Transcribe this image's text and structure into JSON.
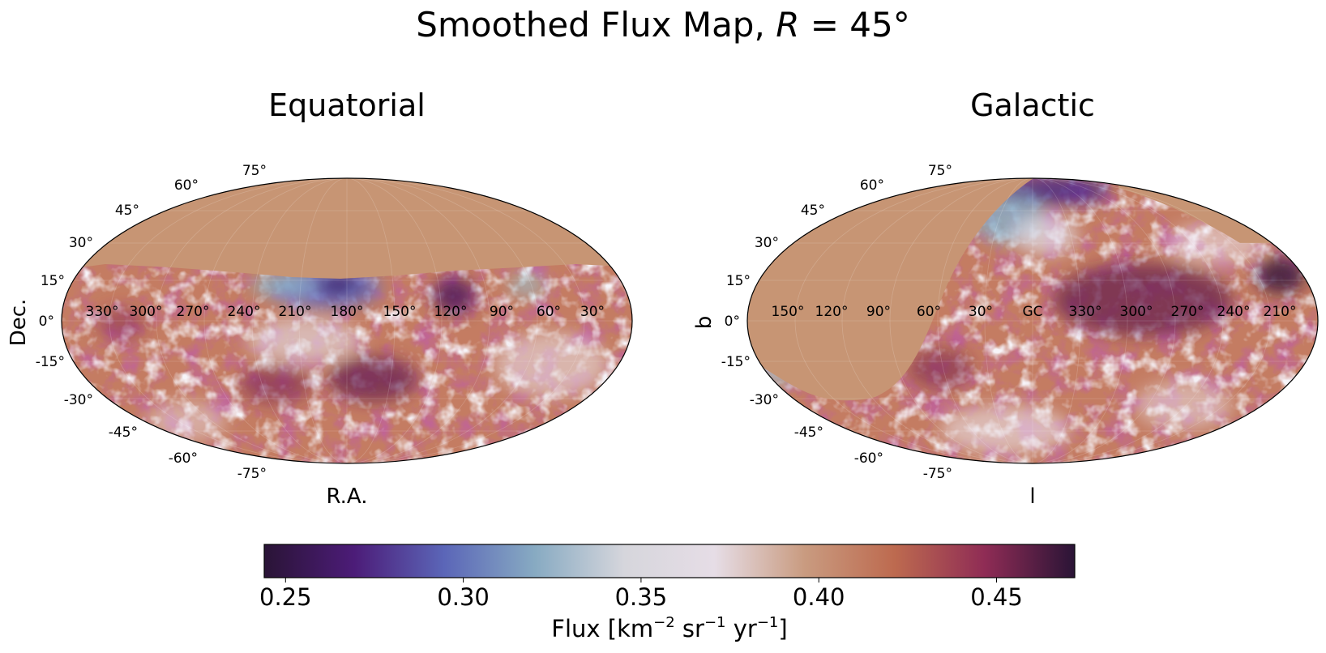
{
  "figure": {
    "title_main": "Smoothed Flux Map, ",
    "title_math_var": "R",
    "title_math_rest": " = 45°"
  },
  "colors": {
    "mask": "#c79574",
    "colormap": "twilight_shifted",
    "colormap_stops": [
      "#2a1436",
      "#4c1c78",
      "#5b66b8",
      "#87aac2",
      "#d6d6dc",
      "#e6dde6",
      "#c99b80",
      "#bd6a4f",
      "#8f2c55",
      "#2a1436"
    ]
  },
  "chart_data": [
    {
      "type": "heatmap",
      "projection": "mollweide",
      "title": "Equatorial",
      "xlabel": "R.A.",
      "ylabel": "Dec.",
      "lon_tick_labels": [
        "330°",
        "300°",
        "270°",
        "240°",
        "210°",
        "180°",
        "150°",
        "120°",
        "90°",
        "60°",
        "30°"
      ],
      "lat_tick_labels": [
        "75°",
        "60°",
        "45°",
        "30°",
        "15°",
        "0°",
        "-15°",
        "-30°",
        "-45°",
        "-60°",
        "-75°"
      ],
      "masked_region": "declination above about 20°",
      "grid": true
    },
    {
      "type": "heatmap",
      "projection": "mollweide",
      "title": "Galactic",
      "xlabel": "l",
      "ylabel": "b",
      "lon_tick_labels": [
        "150°",
        "120°",
        "90°",
        "60°",
        "30°",
        "GC",
        "330°",
        "300°",
        "270°",
        "240°",
        "210°"
      ],
      "lat_tick_labels": [
        "75°",
        "60°",
        "45°",
        "30°",
        "15°",
        "0°",
        "-15°",
        "-30°",
        "-45°",
        "-60°",
        "-75°"
      ],
      "masked_region": "equatorial declination above about 20°",
      "grid": true
    }
  ],
  "colorbar": {
    "ticks": [
      "0.25",
      "0.30",
      "0.35",
      "0.40",
      "0.45"
    ],
    "tick_values": [
      0.25,
      0.3,
      0.35,
      0.4,
      0.45
    ],
    "range": [
      0.244,
      0.472
    ],
    "label_prefix": "Flux [km",
    "label_exp1": "−2",
    "label_mid1": " sr",
    "label_exp2": "−1",
    "label_mid2": " yr",
    "label_exp3": "−1",
    "label_suffix": "]",
    "orientation": "horizontal",
    "location": "bottom"
  }
}
